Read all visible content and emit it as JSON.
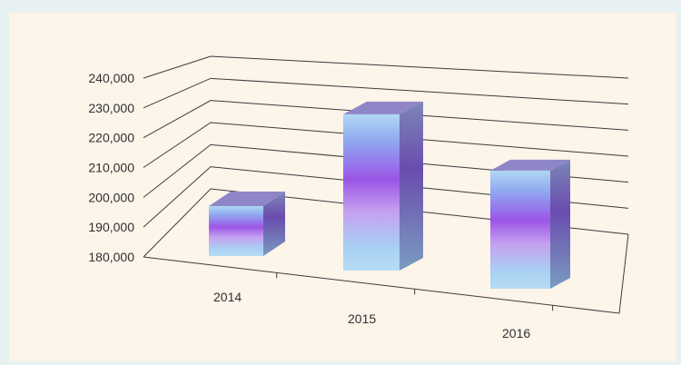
{
  "chart_data": {
    "type": "bar",
    "style": "3d-perspective",
    "title": "",
    "xlabel": "",
    "ylabel": "",
    "categories": [
      "2014",
      "2015",
      "2016"
    ],
    "values": [
      200000,
      237000,
      221000
    ],
    "ylim": [
      180000,
      240000
    ],
    "yticks": [
      "180,000",
      "190,000",
      "200,000",
      "210,000",
      "220,000",
      "230,000",
      "240,000"
    ],
    "grid": true,
    "legend": "none",
    "colors": {
      "bar_light": "#a9d4f0",
      "bar_mid": "#9a5ce8",
      "bar_dark": "#7a48c8",
      "bar_top": "#8f86c8",
      "bar_side": "#6f6aa8",
      "grid": "#4a4a4a",
      "panel_bg": "#fdf4ea",
      "outer_bg": "#e8f1f1"
    }
  }
}
